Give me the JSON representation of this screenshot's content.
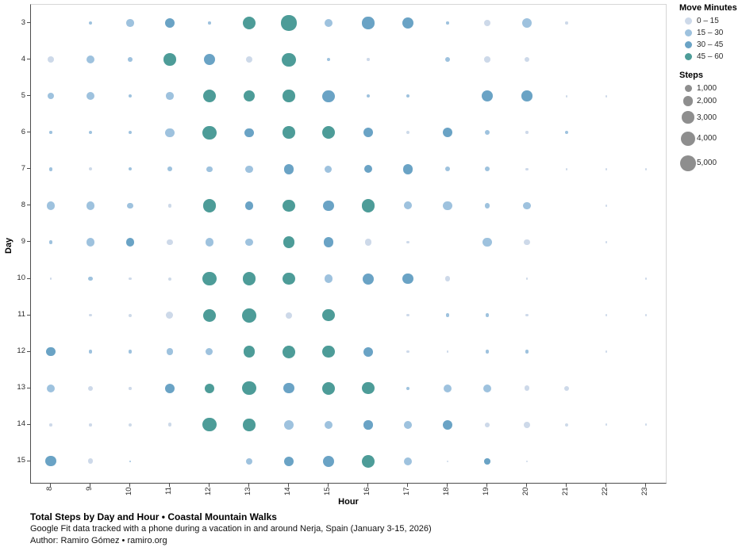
{
  "caption": {
    "title": "Total Steps by Day and Hour • Coastal Mountain Walks",
    "subtitle": "Google Fit data tracked with a phone during a vacation in and around Nerja, Spain (January 3-15, 2026)",
    "author": "Author: Ramiro Gómez • ramiro.org"
  },
  "chart_data": {
    "type": "scatter",
    "title": "Total Steps by Day and Hour • Coastal Mountain Walks",
    "xlabel": "Hour",
    "ylabel": "Day",
    "x_ticks": [
      8,
      9,
      10,
      11,
      12,
      13,
      14,
      15,
      16,
      17,
      18,
      19,
      20,
      21,
      22,
      23
    ],
    "y_ticks": [
      3,
      4,
      5,
      6,
      7,
      8,
      9,
      10,
      11,
      12,
      13,
      14,
      15
    ],
    "x_range": [
      8,
      23
    ],
    "y_range": [
      3,
      15
    ],
    "grid": false,
    "legend_position": "right",
    "color_legend": {
      "title": "Move Minutes",
      "bins": [
        {
          "label": "0 – 15",
          "color": "#cdd9e9"
        },
        {
          "label": "15 – 30",
          "color": "#9ec2de"
        },
        {
          "label": "30 – 45",
          "color": "#6aa3c5"
        },
        {
          "label": "45 – 60",
          "color": "#4d9c98"
        }
      ]
    },
    "size_legend": {
      "title": "Steps",
      "color": "#8e8e8e",
      "entries": [
        {
          "label": "1,000",
          "steps": 1000
        },
        {
          "label": "2,000",
          "steps": 2000
        },
        {
          "label": "3,000",
          "steps": 3000
        },
        {
          "label": "4,000",
          "steps": 4000
        },
        {
          "label": "5,000",
          "steps": 5000
        }
      ]
    },
    "points_format": [
      "day",
      "hour",
      "steps",
      "move_minutes_bin_index"
    ],
    "points": [
      [
        3,
        9,
        200,
        1
      ],
      [
        3,
        10,
        1100,
        1
      ],
      [
        3,
        11,
        2000,
        2
      ],
      [
        3,
        12,
        150,
        1
      ],
      [
        3,
        13,
        3200,
        3
      ],
      [
        3,
        14,
        4500,
        3
      ],
      [
        3,
        15,
        1300,
        1
      ],
      [
        3,
        16,
        2800,
        2
      ],
      [
        3,
        17,
        2500,
        2
      ],
      [
        3,
        18,
        150,
        1
      ],
      [
        3,
        19,
        800,
        0
      ],
      [
        3,
        20,
        1800,
        1
      ],
      [
        3,
        21,
        150,
        0
      ],
      [
        4,
        8,
        800,
        0
      ],
      [
        4,
        9,
        1400,
        1
      ],
      [
        4,
        10,
        400,
        1
      ],
      [
        4,
        11,
        3000,
        3
      ],
      [
        4,
        12,
        2400,
        2
      ],
      [
        4,
        13,
        900,
        0
      ],
      [
        4,
        14,
        3600,
        3
      ],
      [
        4,
        15,
        200,
        1
      ],
      [
        4,
        16,
        150,
        0
      ],
      [
        4,
        18,
        500,
        1
      ],
      [
        4,
        19,
        700,
        0
      ],
      [
        4,
        20,
        500,
        0
      ],
      [
        5,
        8,
        900,
        1
      ],
      [
        5,
        9,
        1400,
        1
      ],
      [
        5,
        10,
        250,
        1
      ],
      [
        5,
        11,
        1100,
        1
      ],
      [
        5,
        12,
        3200,
        3
      ],
      [
        5,
        13,
        2600,
        3
      ],
      [
        5,
        14,
        2900,
        3
      ],
      [
        5,
        15,
        2800,
        2
      ],
      [
        5,
        16,
        200,
        1
      ],
      [
        5,
        17,
        200,
        1
      ],
      [
        5,
        19,
        2500,
        2
      ],
      [
        5,
        20,
        2200,
        2
      ],
      [
        5,
        21,
        100,
        0
      ],
      [
        5,
        22,
        100,
        0
      ],
      [
        6,
        8,
        150,
        1
      ],
      [
        6,
        9,
        200,
        1
      ],
      [
        6,
        10,
        200,
        1
      ],
      [
        6,
        11,
        1500,
        1
      ],
      [
        6,
        12,
        3600,
        3
      ],
      [
        6,
        13,
        1500,
        2
      ],
      [
        6,
        14,
        3000,
        3
      ],
      [
        6,
        15,
        3200,
        3
      ],
      [
        6,
        16,
        1900,
        2
      ],
      [
        6,
        17,
        250,
        0
      ],
      [
        6,
        18,
        1900,
        2
      ],
      [
        6,
        19,
        500,
        1
      ],
      [
        6,
        20,
        150,
        0
      ],
      [
        6,
        21,
        250,
        1
      ],
      [
        7,
        8,
        300,
        1
      ],
      [
        7,
        9,
        200,
        0
      ],
      [
        7,
        10,
        200,
        1
      ],
      [
        7,
        11,
        400,
        1
      ],
      [
        7,
        12,
        700,
        1
      ],
      [
        7,
        13,
        1100,
        1
      ],
      [
        7,
        14,
        1900,
        2
      ],
      [
        7,
        15,
        1000,
        1
      ],
      [
        7,
        16,
        1300,
        2
      ],
      [
        7,
        17,
        1900,
        2
      ],
      [
        7,
        18,
        450,
        1
      ],
      [
        7,
        19,
        450,
        1
      ],
      [
        7,
        20,
        150,
        0
      ],
      [
        7,
        21,
        100,
        0
      ],
      [
        7,
        22,
        100,
        0
      ],
      [
        7,
        23,
        100,
        0
      ],
      [
        8,
        8,
        1400,
        1
      ],
      [
        8,
        9,
        1400,
        1
      ],
      [
        8,
        10,
        700,
        1
      ],
      [
        8,
        11,
        300,
        0
      ],
      [
        8,
        12,
        3400,
        3
      ],
      [
        8,
        13,
        1300,
        2
      ],
      [
        8,
        14,
        2800,
        3
      ],
      [
        8,
        15,
        2200,
        2
      ],
      [
        8,
        16,
        3300,
        3
      ],
      [
        8,
        17,
        1200,
        1
      ],
      [
        8,
        18,
        1500,
        1
      ],
      [
        8,
        19,
        600,
        1
      ],
      [
        8,
        20,
        1100,
        1
      ],
      [
        8,
        22,
        100,
        0
      ],
      [
        9,
        8,
        300,
        1
      ],
      [
        9,
        9,
        1300,
        1
      ],
      [
        9,
        10,
        1300,
        2
      ],
      [
        9,
        11,
        700,
        0
      ],
      [
        9,
        12,
        1400,
        1
      ],
      [
        9,
        13,
        1200,
        1
      ],
      [
        9,
        14,
        2600,
        3
      ],
      [
        9,
        15,
        1900,
        2
      ],
      [
        9,
        16,
        900,
        0
      ],
      [
        9,
        17,
        150,
        0
      ],
      [
        9,
        19,
        1500,
        1
      ],
      [
        9,
        20,
        700,
        0
      ],
      [
        9,
        22,
        100,
        0
      ],
      [
        10,
        8,
        100,
        0
      ],
      [
        10,
        9,
        400,
        1
      ],
      [
        10,
        10,
        150,
        0
      ],
      [
        10,
        11,
        200,
        0
      ],
      [
        10,
        12,
        3900,
        3
      ],
      [
        10,
        13,
        3300,
        3
      ],
      [
        10,
        14,
        2900,
        3
      ],
      [
        10,
        15,
        1300,
        1
      ],
      [
        10,
        16,
        2400,
        2
      ],
      [
        10,
        17,
        2200,
        2
      ],
      [
        10,
        18,
        500,
        0
      ],
      [
        10,
        20,
        100,
        0
      ],
      [
        10,
        23,
        100,
        0
      ],
      [
        11,
        9,
        150,
        0
      ],
      [
        11,
        10,
        200,
        0
      ],
      [
        11,
        11,
        1000,
        0
      ],
      [
        11,
        12,
        3100,
        3
      ],
      [
        11,
        13,
        3900,
        3
      ],
      [
        11,
        14,
        800,
        0
      ],
      [
        11,
        15,
        3000,
        3
      ],
      [
        11,
        17,
        150,
        0
      ],
      [
        11,
        18,
        300,
        1
      ],
      [
        11,
        19,
        300,
        1
      ],
      [
        11,
        20,
        150,
        0
      ],
      [
        11,
        22,
        100,
        0
      ],
      [
        11,
        23,
        100,
        0
      ],
      [
        12,
        8,
        1500,
        2
      ],
      [
        12,
        9,
        300,
        1
      ],
      [
        12,
        10,
        250,
        1
      ],
      [
        12,
        11,
        900,
        1
      ],
      [
        12,
        12,
        1000,
        1
      ],
      [
        12,
        13,
        2600,
        3
      ],
      [
        12,
        14,
        3100,
        3
      ],
      [
        12,
        15,
        2900,
        3
      ],
      [
        12,
        16,
        1900,
        2
      ],
      [
        12,
        17,
        150,
        0
      ],
      [
        12,
        18,
        100,
        0
      ],
      [
        12,
        19,
        300,
        1
      ],
      [
        12,
        20,
        300,
        1
      ],
      [
        12,
        22,
        100,
        0
      ],
      [
        13,
        8,
        1250,
        1
      ],
      [
        13,
        9,
        500,
        0
      ],
      [
        13,
        10,
        150,
        0
      ],
      [
        13,
        11,
        1900,
        2
      ],
      [
        13,
        12,
        1800,
        3
      ],
      [
        13,
        13,
        3600,
        3
      ],
      [
        13,
        14,
        2100,
        2
      ],
      [
        13,
        15,
        3300,
        3
      ],
      [
        13,
        16,
        2900,
        3
      ],
      [
        13,
        17,
        250,
        1
      ],
      [
        13,
        18,
        1300,
        1
      ],
      [
        13,
        19,
        1300,
        1
      ],
      [
        13,
        20,
        600,
        0
      ],
      [
        13,
        21,
        500,
        0
      ],
      [
        14,
        8,
        150,
        0
      ],
      [
        14,
        9,
        150,
        0
      ],
      [
        14,
        10,
        200,
        0
      ],
      [
        14,
        11,
        300,
        0
      ],
      [
        14,
        12,
        3600,
        3
      ],
      [
        14,
        13,
        2900,
        3
      ],
      [
        14,
        14,
        1800,
        1
      ],
      [
        14,
        15,
        1300,
        1
      ],
      [
        14,
        16,
        1600,
        2
      ],
      [
        14,
        17,
        1200,
        1
      ],
      [
        14,
        18,
        1900,
        2
      ],
      [
        14,
        19,
        400,
        0
      ],
      [
        14,
        20,
        800,
        0
      ],
      [
        14,
        21,
        250,
        0
      ],
      [
        14,
        22,
        100,
        0
      ],
      [
        14,
        23,
        100,
        0
      ],
      [
        15,
        8,
        2100,
        2
      ],
      [
        15,
        9,
        600,
        0
      ],
      [
        15,
        10,
        100,
        1
      ],
      [
        15,
        13,
        900,
        1
      ],
      [
        15,
        14,
        1800,
        2
      ],
      [
        15,
        15,
        2500,
        2
      ],
      [
        15,
        16,
        3100,
        3
      ],
      [
        15,
        17,
        1300,
        1
      ],
      [
        15,
        18,
        100,
        0
      ],
      [
        15,
        19,
        700,
        2
      ],
      [
        15,
        20,
        100,
        0
      ]
    ]
  }
}
